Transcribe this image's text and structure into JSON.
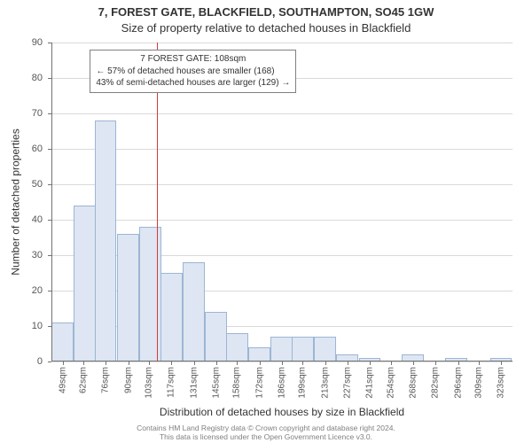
{
  "title_line1": "7, FOREST GATE, BLACKFIELD, SOUTHAMPTON, SO45 1GW",
  "title_line2": "Size of property relative to detached houses in Blackfield",
  "chart": {
    "type": "histogram",
    "ylabel": "Number of detached properties",
    "xlabel": "Distribution of detached houses by size in Blackfield",
    "x_min": 42,
    "x_max": 330,
    "y_min": 0,
    "y_max": 90,
    "y_ticks": [
      0,
      10,
      20,
      30,
      40,
      50,
      60,
      70,
      80,
      90
    ],
    "x_tick_values": [
      49,
      62,
      76,
      90,
      103,
      117,
      131,
      145,
      158,
      172,
      186,
      199,
      213,
      227,
      241,
      254,
      268,
      282,
      296,
      309,
      323
    ],
    "x_tick_unit": "sqm",
    "bin_width_sqm": 13.7,
    "bars": [
      {
        "x_start": 42,
        "count": 11
      },
      {
        "x_start": 56,
        "count": 44
      },
      {
        "x_start": 69,
        "count": 68
      },
      {
        "x_start": 83,
        "count": 36
      },
      {
        "x_start": 97,
        "count": 38
      },
      {
        "x_start": 110,
        "count": 25
      },
      {
        "x_start": 124,
        "count": 28
      },
      {
        "x_start": 138,
        "count": 14
      },
      {
        "x_start": 151,
        "count": 8
      },
      {
        "x_start": 165,
        "count": 4
      },
      {
        "x_start": 179,
        "count": 7
      },
      {
        "x_start": 192,
        "count": 7
      },
      {
        "x_start": 206,
        "count": 7
      },
      {
        "x_start": 220,
        "count": 2
      },
      {
        "x_start": 234,
        "count": 1
      },
      {
        "x_start": 247,
        "count": 0
      },
      {
        "x_start": 261,
        "count": 2
      },
      {
        "x_start": 275,
        "count": 0
      },
      {
        "x_start": 288,
        "count": 1
      },
      {
        "x_start": 302,
        "count": 0
      },
      {
        "x_start": 316,
        "count": 1
      }
    ],
    "bar_fill": "#dde6f2",
    "bar_stroke": "#9db5d4",
    "grid_color": "#d9d9d9",
    "background": "#ffffff",
    "reference_line": {
      "x_value": 108,
      "color": "#d43a3a"
    },
    "annotation": {
      "lines": [
        "7 FOREST GATE: 108sqm",
        "← 57% of detached houses are smaller (168)",
        "43% of semi-detached houses are larger (129) →"
      ],
      "border_color": "#808080",
      "background": "#ffffff",
      "font_size": 10,
      "x_value_anchor": 66,
      "y_value_top": 88
    }
  },
  "footer_line1": "Contains HM Land Registry data © Crown copyright and database right 2024.",
  "footer_line2": "This data is licensed under the Open Government Licence v3.0."
}
